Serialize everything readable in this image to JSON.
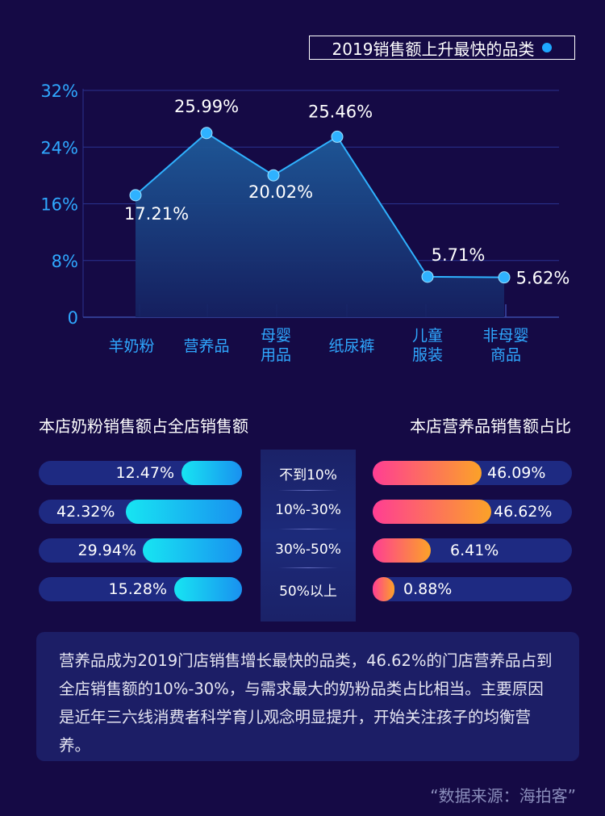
{
  "legend": {
    "label": "2019销售额上升最快的品类"
  },
  "chart_data": {
    "type": "area",
    "categories": [
      [
        "羊奶粉"
      ],
      [
        "营养品"
      ],
      [
        "母婴",
        "用品"
      ],
      [
        "纸尿裤"
      ],
      [
        "儿童",
        "服装"
      ],
      [
        "非母婴",
        "商品"
      ]
    ],
    "values": [
      17.21,
      25.99,
      20.02,
      25.46,
      5.71,
      5.62
    ],
    "labels": [
      "17.21%",
      "25.99%",
      "20.02%",
      "25.46%",
      "5.71%",
      "5.62%"
    ],
    "yticks": [
      "0",
      "8%",
      "16%",
      "24%",
      "32%"
    ],
    "ylim": [
      0,
      32
    ],
    "legend": "2019销售额上升最快的品类",
    "legend_position": "top-right",
    "grid": true,
    "colors": {
      "line": "#2fb2ff",
      "area_top": "#1e5a9a",
      "area_bottom": "#152060",
      "tick": "#2fa8ff",
      "grid": "#2a3390"
    }
  },
  "left_section": {
    "title": "本店奶粉销售额占全店销售额",
    "bars": [
      {
        "label": "12.47%",
        "value": 12.47
      },
      {
        "label": "42.32%",
        "value": 42.32
      },
      {
        "label": "29.94%",
        "value": 29.94
      },
      {
        "label": "15.28%",
        "value": 15.28
      }
    ]
  },
  "right_section": {
    "title": "本店营养品销售额占比",
    "bars": [
      {
        "label": "46.09%",
        "value": 46.09
      },
      {
        "label": "46.62%",
        "value": 46.62
      },
      {
        "label": "6.41%",
        "value": 6.41
      },
      {
        "label": "0.88%",
        "value": 0.88
      }
    ]
  },
  "ranges": [
    "不到10%",
    "10%-30%",
    "30%-50%",
    "50%以上"
  ],
  "summary": "营养品成为2019门店销售增长最快的品类，46.62%的门店营养品占到全店销售额的10%-30%，与需求最大的奶粉品类占比相当。主要原因是近年三六线消费者科学育儿观念明显提升，开始关注孩子的均衡营养。",
  "source": "“数据来源：海拍客”"
}
